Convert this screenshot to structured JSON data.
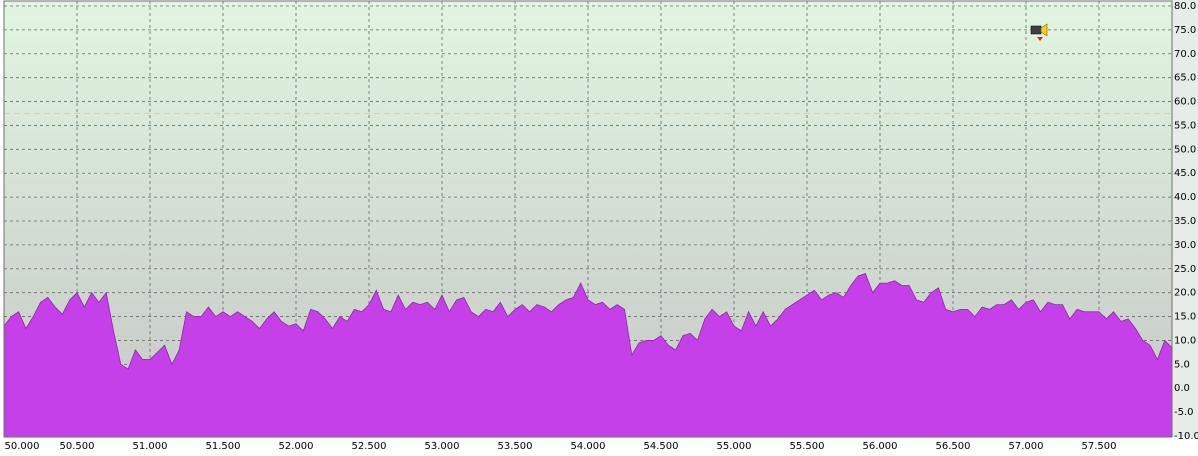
{
  "chart_data": {
    "type": "area",
    "x": [
      50.0,
      50.05,
      50.1,
      50.15,
      50.2,
      50.25,
      50.3,
      50.35,
      50.4,
      50.45,
      50.5,
      50.55,
      50.6,
      50.65,
      50.7,
      50.75,
      50.8,
      50.85,
      50.9,
      50.95,
      51.0,
      51.05,
      51.1,
      51.15,
      51.2,
      51.25,
      51.3,
      51.35,
      51.4,
      51.45,
      51.5,
      51.55,
      51.6,
      51.65,
      51.7,
      51.75,
      51.8,
      51.85,
      51.9,
      51.95,
      52.0,
      52.05,
      52.1,
      52.15,
      52.2,
      52.25,
      52.3,
      52.35,
      52.4,
      52.45,
      52.5,
      52.55,
      52.6,
      52.65,
      52.7,
      52.75,
      52.8,
      52.85,
      52.9,
      52.95,
      53.0,
      53.05,
      53.1,
      53.15,
      53.2,
      53.25,
      53.3,
      53.35,
      53.4,
      53.45,
      53.5,
      53.55,
      53.6,
      53.65,
      53.7,
      53.75,
      53.8,
      53.85,
      53.9,
      53.95,
      54.0,
      54.05,
      54.1,
      54.15,
      54.2,
      54.25,
      54.3,
      54.35,
      54.4,
      54.45,
      54.5,
      54.55,
      54.6,
      54.65,
      54.7,
      54.75,
      54.8,
      54.85,
      54.9,
      54.95,
      55.0,
      55.05,
      55.1,
      55.15,
      55.2,
      55.25,
      55.3,
      55.35,
      55.4,
      55.45,
      55.5,
      55.55,
      55.6,
      55.65,
      55.7,
      55.75,
      55.8,
      55.85,
      55.9,
      55.95,
      56.0,
      56.05,
      56.1,
      56.15,
      56.2,
      56.25,
      56.3,
      56.35,
      56.4,
      56.45,
      56.5,
      56.55,
      56.6,
      56.65,
      56.7,
      56.75,
      56.8,
      56.85,
      56.9,
      56.95,
      57.0,
      57.05,
      57.1,
      57.15,
      57.2,
      57.25,
      57.3,
      57.35,
      57.4,
      57.45,
      57.5,
      57.55,
      57.6,
      57.65,
      57.7,
      57.75,
      57.8,
      57.85,
      57.9,
      57.95,
      58.0
    ],
    "values": [
      13,
      15,
      16,
      12.5,
      15,
      18,
      19,
      17,
      15.5,
      18.5,
      20,
      17,
      20,
      18,
      20,
      12,
      5,
      4,
      8,
      6,
      6,
      7.5,
      9,
      5,
      8,
      16,
      15,
      15,
      17,
      15,
      16,
      15,
      16,
      15,
      14,
      12.5,
      14.5,
      16,
      14,
      13,
      13.5,
      12,
      16.5,
      16,
      14.5,
      12.5,
      15,
      14,
      16.5,
      16,
      17.5,
      20.5,
      16.5,
      16,
      19.5,
      16.5,
      18,
      17.5,
      18,
      16.5,
      19.5,
      16,
      18.5,
      19,
      16,
      15,
      16.5,
      16,
      18,
      15,
      16.5,
      17.5,
      16,
      17.5,
      17,
      16,
      17.5,
      18.5,
      19,
      22,
      18.5,
      17.5,
      18,
      16.5,
      17.5,
      16.5,
      7,
      9.5,
      10,
      10,
      11,
      9,
      8,
      11,
      11.5,
      10,
      14.5,
      16.5,
      15,
      16,
      13,
      12,
      16,
      13,
      16,
      13,
      14.5,
      16.5,
      17.5,
      18.5,
      19.5,
      20.5,
      18.5,
      19.5,
      20,
      19,
      21.5,
      23.5,
      24,
      20,
      22,
      22,
      22.5,
      21.5,
      21.5,
      18.5,
      18,
      20,
      21,
      16.5,
      16,
      16.5,
      16.5,
      15,
      17,
      16.5,
      17.5,
      17.5,
      18.5,
      16.5,
      18,
      18.5,
      16,
      18,
      17.5,
      17.5,
      14.5,
      16.5,
      16,
      16,
      16,
      14.5,
      16,
      14,
      14.5,
      12.5,
      10,
      9,
      6,
      10,
      8.5
    ],
    "color": "#c540e8",
    "xlim": [
      50,
      58
    ],
    "xticks": [
      {
        "value": 50,
        "label": "50.000"
      },
      {
        "value": 50.5,
        "label": "50.500"
      },
      {
        "value": 51,
        "label": "51.000"
      },
      {
        "value": 51.5,
        "label": "51.500"
      },
      {
        "value": 52,
        "label": "52.000"
      },
      {
        "value": 52.5,
        "label": "52.500"
      },
      {
        "value": 53,
        "label": "53.000"
      },
      {
        "value": 53.5,
        "label": "53.500"
      },
      {
        "value": 54,
        "label": "54.000"
      },
      {
        "value": 54.5,
        "label": "54.500"
      },
      {
        "value": 55,
        "label": "55.000"
      },
      {
        "value": 55.5,
        "label": "55.500"
      },
      {
        "value": 56,
        "label": "56.000"
      },
      {
        "value": 56.5,
        "label": "56.500"
      },
      {
        "value": 57,
        "label": "57.000"
      },
      {
        "value": 57.5,
        "label": "57.500"
      }
    ],
    "ylim": [
      -10,
      80
    ],
    "yticks": [
      {
        "value": 80,
        "label": "80.0"
      },
      {
        "value": 75,
        "label": "75.0"
      },
      {
        "value": 70,
        "label": "70.0"
      },
      {
        "value": 65,
        "label": "65.0"
      },
      {
        "value": 60,
        "label": "60.0"
      },
      {
        "value": 55,
        "label": "55.0"
      },
      {
        "value": 50,
        "label": "50.0"
      },
      {
        "value": 45,
        "label": "45.0"
      },
      {
        "value": 40,
        "label": "40.0"
      },
      {
        "value": 35,
        "label": "35.0"
      },
      {
        "value": 30,
        "label": "30.0"
      },
      {
        "value": 25,
        "label": "25.0"
      },
      {
        "value": 20,
        "label": "20.0"
      },
      {
        "value": 15,
        "label": "15.0"
      },
      {
        "value": 10,
        "label": "10.0"
      },
      {
        "value": 5,
        "label": "5.0"
      },
      {
        "value": 0,
        "label": "0.0"
      },
      {
        "value": -5,
        "label": "-5.0"
      },
      {
        "value": -10,
        "label": "-10.0"
      }
    ],
    "grid": true,
    "reference_line": {
      "value": 57.5,
      "color": "#f2c896"
    }
  }
}
